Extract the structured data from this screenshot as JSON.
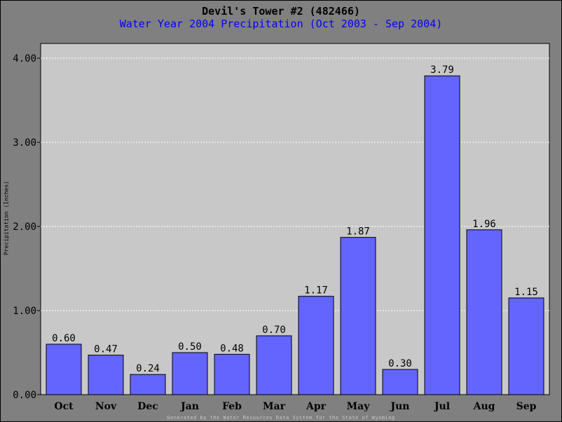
{
  "page": {
    "title": "Devil's Tower #2 (482466)",
    "subtitle": "Water Year 2004 Precipitation (Oct 2003 - Sep 2004)",
    "footer": "Generated by the Water Resources Data System for the State of Wyoming"
  },
  "colors": {
    "background": "#808080",
    "plot_area": "#c8c8c8",
    "bar_fill": "#6464ff",
    "subtitle": "#0000ff"
  },
  "chart_data": {
    "type": "bar",
    "title": "Devil's Tower #2 (482466)",
    "subtitle": "Water Year 2004 Precipitation (Oct 2003 - Sep 2004)",
    "xlabel": "",
    "ylabel": "Precipitation (Inches)",
    "categories": [
      "Oct",
      "Nov",
      "Dec",
      "Jan",
      "Feb",
      "Mar",
      "Apr",
      "May",
      "Jun",
      "Jul",
      "Aug",
      "Sep"
    ],
    "values": [
      0.6,
      0.47,
      0.24,
      0.5,
      0.48,
      0.7,
      1.17,
      1.87,
      0.3,
      3.79,
      1.96,
      1.15
    ],
    "value_labels": [
      "0.60",
      "0.47",
      "0.24",
      "0.50",
      "0.48",
      "0.70",
      "1.17",
      "1.87",
      "0.30",
      "3.79",
      "1.96",
      "1.15"
    ],
    "ylim": [
      0,
      4.0
    ],
    "yticks": [
      0,
      1,
      2,
      3,
      4
    ],
    "ytick_labels": [
      "0.00",
      "1.00",
      "2.00",
      "3.00",
      "4.00"
    ],
    "grid": true,
    "legend": false
  }
}
